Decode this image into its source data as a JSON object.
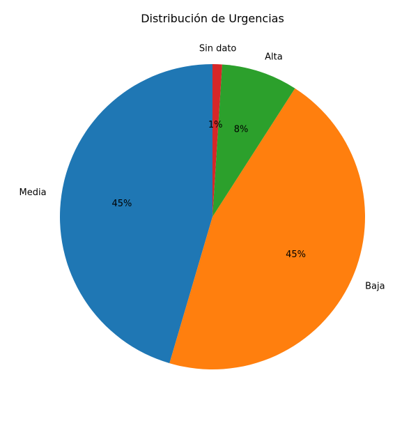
{
  "chart_data": {
    "type": "pie",
    "title": "Distribución de Urgencias",
    "slices": [
      {
        "label": "Media",
        "value": 45,
        "pct_label": "45%",
        "color": "#1f77b4"
      },
      {
        "label": "Baja",
        "value": 45,
        "pct_label": "45%",
        "color": "#ff7f0e"
      },
      {
        "label": "Alta",
        "value": 8,
        "pct_label": "8%",
        "color": "#2ca02c"
      },
      {
        "label": "Sin dato",
        "value": 1,
        "pct_label": "1%",
        "color": "#d62728"
      }
    ],
    "start_angle_deg": 90,
    "direction": "counterclockwise",
    "legend": "none"
  }
}
